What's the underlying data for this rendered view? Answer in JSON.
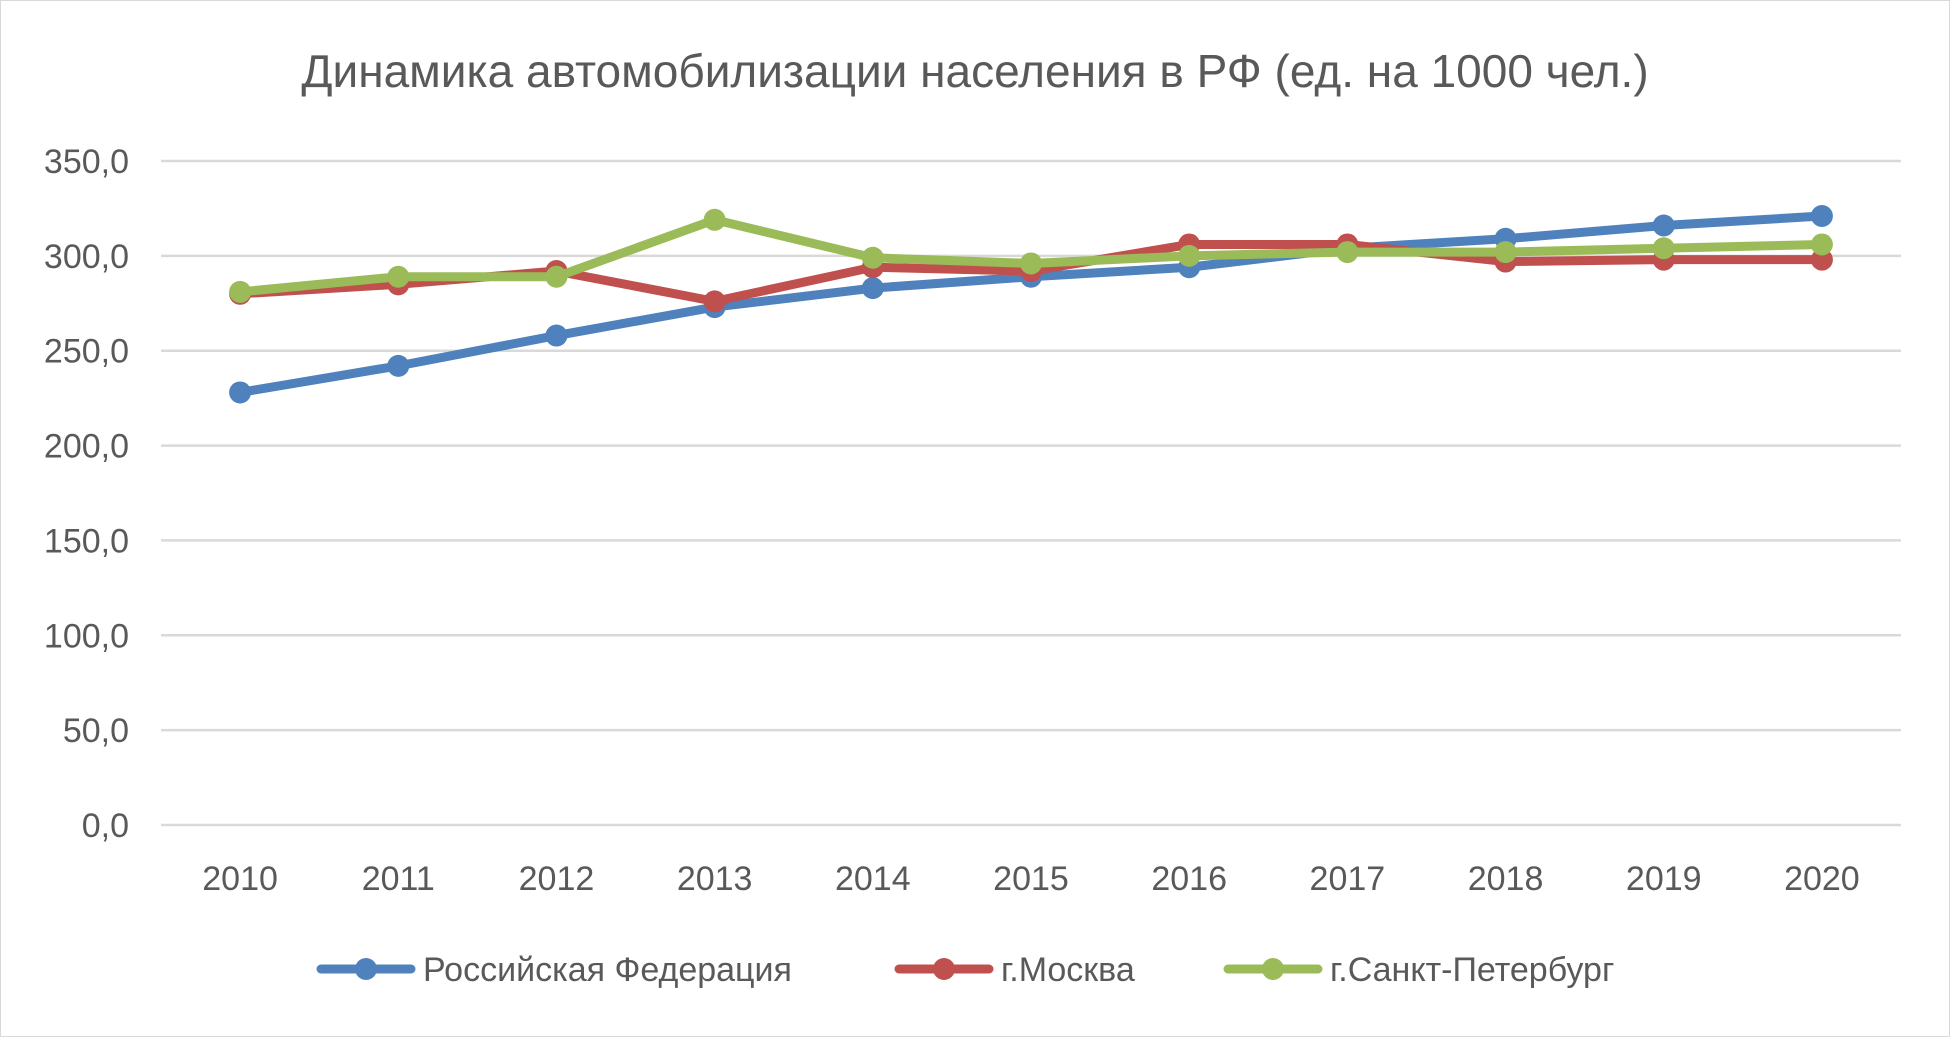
{
  "chart_data": {
    "type": "line",
    "title": "Динамика автомобилизации населения в РФ (ед. на 1000 чел.)",
    "xlabel": "",
    "ylabel": "",
    "categories": [
      "2010",
      "2011",
      "2012",
      "2013",
      "2014",
      "2015",
      "2016",
      "2017",
      "2018",
      "2019",
      "2020"
    ],
    "ylim": [
      0,
      350
    ],
    "yticks": [
      "0,0",
      "50,0",
      "100,0",
      "150,0",
      "200,0",
      "250,0",
      "300,0",
      "350,0"
    ],
    "grid": true,
    "legend": "bottom",
    "series": [
      {
        "name": "Российская Федерация",
        "color": "#4f81bd",
        "values": [
          228,
          242,
          258,
          273,
          283,
          289,
          294,
          304,
          309,
          316,
          321
        ]
      },
      {
        "name": "г.Москва",
        "color": "#c0504d",
        "values": [
          280,
          285,
          292,
          276,
          294,
          292,
          306,
          306,
          297,
          298,
          298
        ]
      },
      {
        "name": "г.Санкт-Петербург",
        "color": "#9bbb59",
        "values": [
          281,
          289,
          289,
          319,
          299,
          296,
          300,
          302,
          302,
          304,
          306
        ]
      }
    ]
  }
}
